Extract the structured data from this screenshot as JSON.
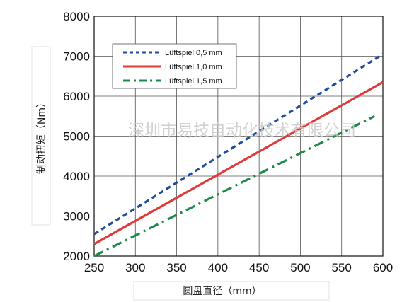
{
  "chart_data": {
    "type": "line",
    "xlabel": "圆盘直径（mm）",
    "ylabel": "制动扭矩（Nm）",
    "x_ticks": [
      "250",
      "300",
      "350",
      "400",
      "450",
      "500",
      "550",
      "600"
    ],
    "y_ticks": [
      "2000",
      "3000",
      "4000",
      "5000",
      "6000",
      "7000",
      "8000"
    ],
    "xlim": [
      250,
      600
    ],
    "ylim": [
      2000,
      8000
    ],
    "grid": true,
    "legend_position": "top-left",
    "series": [
      {
        "name": "Lüftspiel 0,5 mm",
        "color": "#1f4e9c",
        "style": "dashed",
        "x": [
          250,
          600
        ],
        "y": [
          2550,
          7050
        ]
      },
      {
        "name": "Lüftspiel 1,0 mm",
        "color": "#e03a3a",
        "style": "solid",
        "x": [
          250,
          600
        ],
        "y": [
          2300,
          6350
        ]
      },
      {
        "name": "Lüftspiel 1,5 mm",
        "color": "#1e8a4a",
        "style": "dashdot",
        "x": [
          250,
          590
        ],
        "y": [
          2000,
          5500
        ]
      }
    ]
  },
  "watermark": "深圳市易技自动化技术有限公司"
}
